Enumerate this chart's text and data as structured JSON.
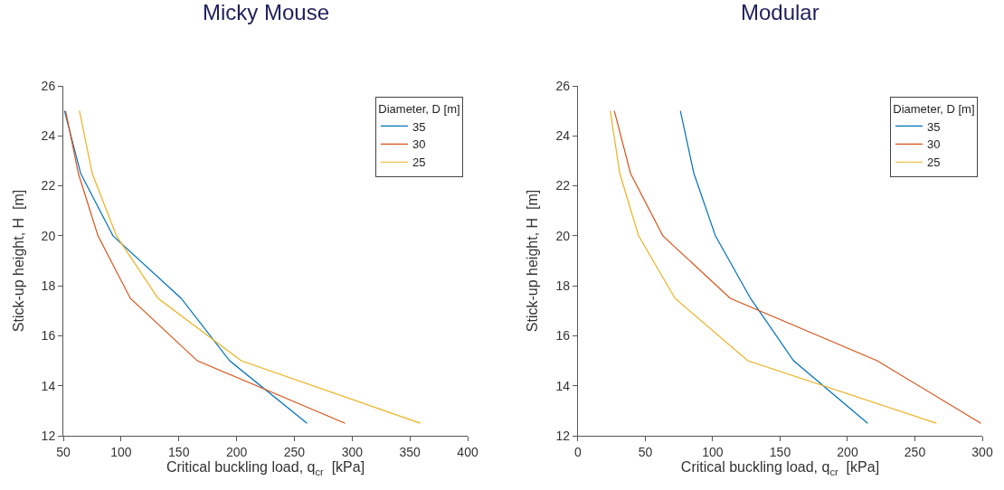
{
  "chart_data": [
    {
      "type": "line",
      "title": "Micky Mouse",
      "xlabel": "Critical buckling load, q$_{cr}$  [kPa]",
      "ylabel": "Stick-up height, H  [m]",
      "legend_title": "Diameter, D [m]",
      "legend": "top right",
      "xlim": [
        50,
        400
      ],
      "xticks": [
        50,
        100,
        150,
        200,
        250,
        300,
        350,
        400
      ],
      "ylim": [
        12,
        26
      ],
      "yticks": [
        12,
        14,
        16,
        18,
        20,
        22,
        24,
        26
      ],
      "series": [
        {
          "name": "35",
          "color": "#0072bd",
          "x": [
            51,
            65,
            93,
            152,
            194,
            261
          ],
          "values": [
            25,
            22.5,
            20,
            17.5,
            15,
            12.5
          ]
        },
        {
          "name": "30",
          "color": "#d95319",
          "x": [
            52,
            63,
            80,
            108,
            166,
            294
          ],
          "values": [
            25,
            22.5,
            20,
            17.5,
            15,
            12.5
          ]
        },
        {
          "name": "25",
          "color": "#edb120",
          "x": [
            64,
            75,
            96,
            132,
            204,
            359
          ],
          "values": [
            25,
            22.5,
            20,
            17.5,
            15,
            12.5
          ]
        }
      ]
    },
    {
      "type": "line",
      "title": "Modular",
      "xlabel": "Critical buckling load, q$_{cr}$  [kPa]",
      "ylabel": "Stick-up height, H  [m]",
      "legend_title": "Diameter, D [m]",
      "legend": "top right",
      "xlim": [
        0,
        300
      ],
      "xticks": [
        0,
        50,
        100,
        150,
        200,
        250,
        300
      ],
      "ylim": [
        12,
        26
      ],
      "yticks": [
        12,
        14,
        16,
        18,
        20,
        22,
        24,
        26
      ],
      "series": [
        {
          "name": "35",
          "color": "#0072bd",
          "x": [
            76,
            86,
            102,
            128,
            160,
            215
          ],
          "values": [
            25,
            22.5,
            20,
            17.5,
            15,
            12.5
          ]
        },
        {
          "name": "30",
          "color": "#d95319",
          "x": [
            27,
            39,
            63,
            113,
            222,
            299
          ],
          "values": [
            25,
            22.5,
            20,
            17.5,
            15,
            12.5
          ]
        },
        {
          "name": "25",
          "color": "#edb120",
          "x": [
            24,
            31,
            45,
            72,
            126,
            266
          ],
          "values": [
            25,
            22.5,
            20,
            17.5,
            15,
            12.5
          ]
        }
      ]
    }
  ]
}
